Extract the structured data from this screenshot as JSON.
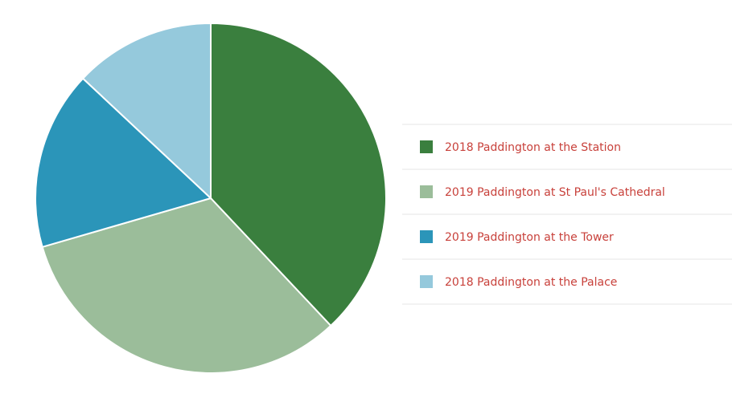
{
  "chart_data": {
    "type": "pie",
    "categories": [
      "2018 Paddington at the Station",
      "2019 Paddington at St Paul's Cathedral",
      "2019 Paddington at the Tower",
      "2018 Paddington at the Palace"
    ],
    "values": [
      38,
      32.5,
      16.5,
      13
    ],
    "colors": [
      "#3a7f3e",
      "#9bbd9a",
      "#2b95b9",
      "#95c9dc"
    ],
    "legend": "right"
  }
}
